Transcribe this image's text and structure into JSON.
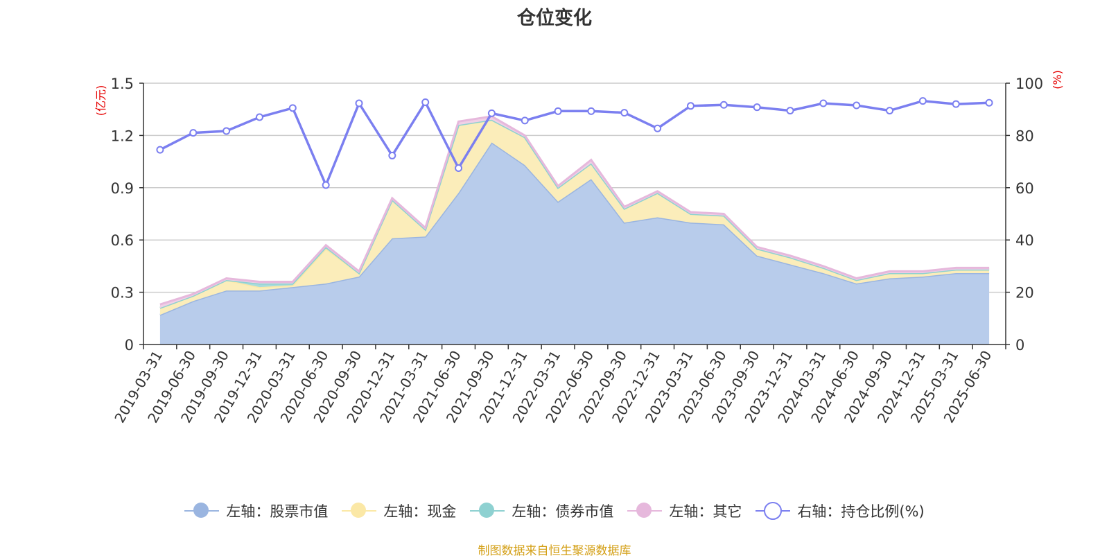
{
  "source_note": "制图数据来自恒生聚源数据库",
  "chart_data": {
    "type": "area",
    "title": "仓位变化",
    "left_axis": {
      "unit": "(亿元)",
      "ylim": [
        0,
        1.5
      ],
      "ticks": [
        "0",
        "0.3",
        "0.6",
        "0.9",
        "1.2",
        "1.5"
      ],
      "tick_values": [
        0,
        0.3,
        0.6,
        0.9,
        1.2,
        1.5
      ]
    },
    "right_axis": {
      "unit": "(%)",
      "ylim": [
        0,
        100
      ],
      "ticks": [
        "0",
        "20",
        "40",
        "60",
        "80",
        "100"
      ],
      "tick_values": [
        0,
        20,
        40,
        60,
        80,
        100
      ]
    },
    "grid": true,
    "legend_position": "bottom",
    "x": [
      "2019-03-31",
      "2019-06-30",
      "2019-09-30",
      "2019-12-31",
      "2020-03-31",
      "2020-06-30",
      "2020-09-30",
      "2020-12-31",
      "2021-03-31",
      "2021-06-30",
      "2021-09-30",
      "2021-12-31",
      "2022-03-31",
      "2022-06-30",
      "2022-09-30",
      "2022-12-31",
      "2023-03-31",
      "2023-06-30",
      "2023-09-30",
      "2023-12-31",
      "2024-03-31",
      "2024-06-30",
      "2024-09-30",
      "2024-12-31",
      "2025-03-31",
      "2025-06-30"
    ],
    "series": [
      {
        "name": "左轴：股票市值",
        "axis": "left",
        "color": "#9ab5e0",
        "fill": "#b8cceb",
        "values": [
          0.17,
          0.25,
          0.31,
          0.31,
          0.33,
          0.35,
          0.39,
          0.61,
          0.62,
          0.87,
          1.16,
          1.03,
          0.82,
          0.95,
          0.7,
          0.73,
          0.7,
          0.69,
          0.51,
          0.46,
          0.41,
          0.35,
          0.38,
          0.39,
          0.41,
          0.41
        ]
      },
      {
        "name": "左轴：现金",
        "axis": "left",
        "color": "#fbe8a6",
        "fill": "#fbedba",
        "values": [
          0.04,
          0.03,
          0.06,
          0.02,
          0.01,
          0.2,
          0.02,
          0.22,
          0.04,
          0.39,
          0.13,
          0.16,
          0.08,
          0.09,
          0.08,
          0.14,
          0.05,
          0.05,
          0.04,
          0.04,
          0.03,
          0.02,
          0.03,
          0.02,
          0.02,
          0.02
        ]
      },
      {
        "name": "左轴：债券市值",
        "axis": "left",
        "color": "#8ed1d1",
        "fill": "#a8dcdc",
        "values": [
          0,
          0,
          0,
          0.02,
          0.01,
          0.01,
          0,
          0,
          0,
          0,
          0,
          0,
          0,
          0,
          0,
          0,
          0,
          0,
          0,
          0,
          0,
          0,
          0,
          0,
          0,
          0
        ]
      },
      {
        "name": "左轴：其它",
        "axis": "left",
        "color": "#e6b8dc",
        "fill": "#f0d0e6",
        "values": [
          0.02,
          0.01,
          0.01,
          0.01,
          0.01,
          0.01,
          0.01,
          0.01,
          0.01,
          0.02,
          0.02,
          0.01,
          0.01,
          0.02,
          0.01,
          0.01,
          0.01,
          0.01,
          0.01,
          0.01,
          0.01,
          0.01,
          0.01,
          0.01,
          0.01,
          0.01
        ]
      },
      {
        "name": "右轴：持仓比例(%)",
        "axis": "right",
        "type": "line",
        "color": "#7b7ff0",
        "values": [
          74.5,
          81,
          81.7,
          87,
          90.5,
          61,
          92.3,
          72.3,
          92.7,
          67.5,
          88.5,
          85.7,
          89.3,
          89.3,
          88.7,
          82.7,
          91.3,
          91.7,
          90.8,
          89.5,
          92.3,
          91.5,
          89.5,
          93.2,
          92,
          92.5
        ]
      }
    ]
  }
}
